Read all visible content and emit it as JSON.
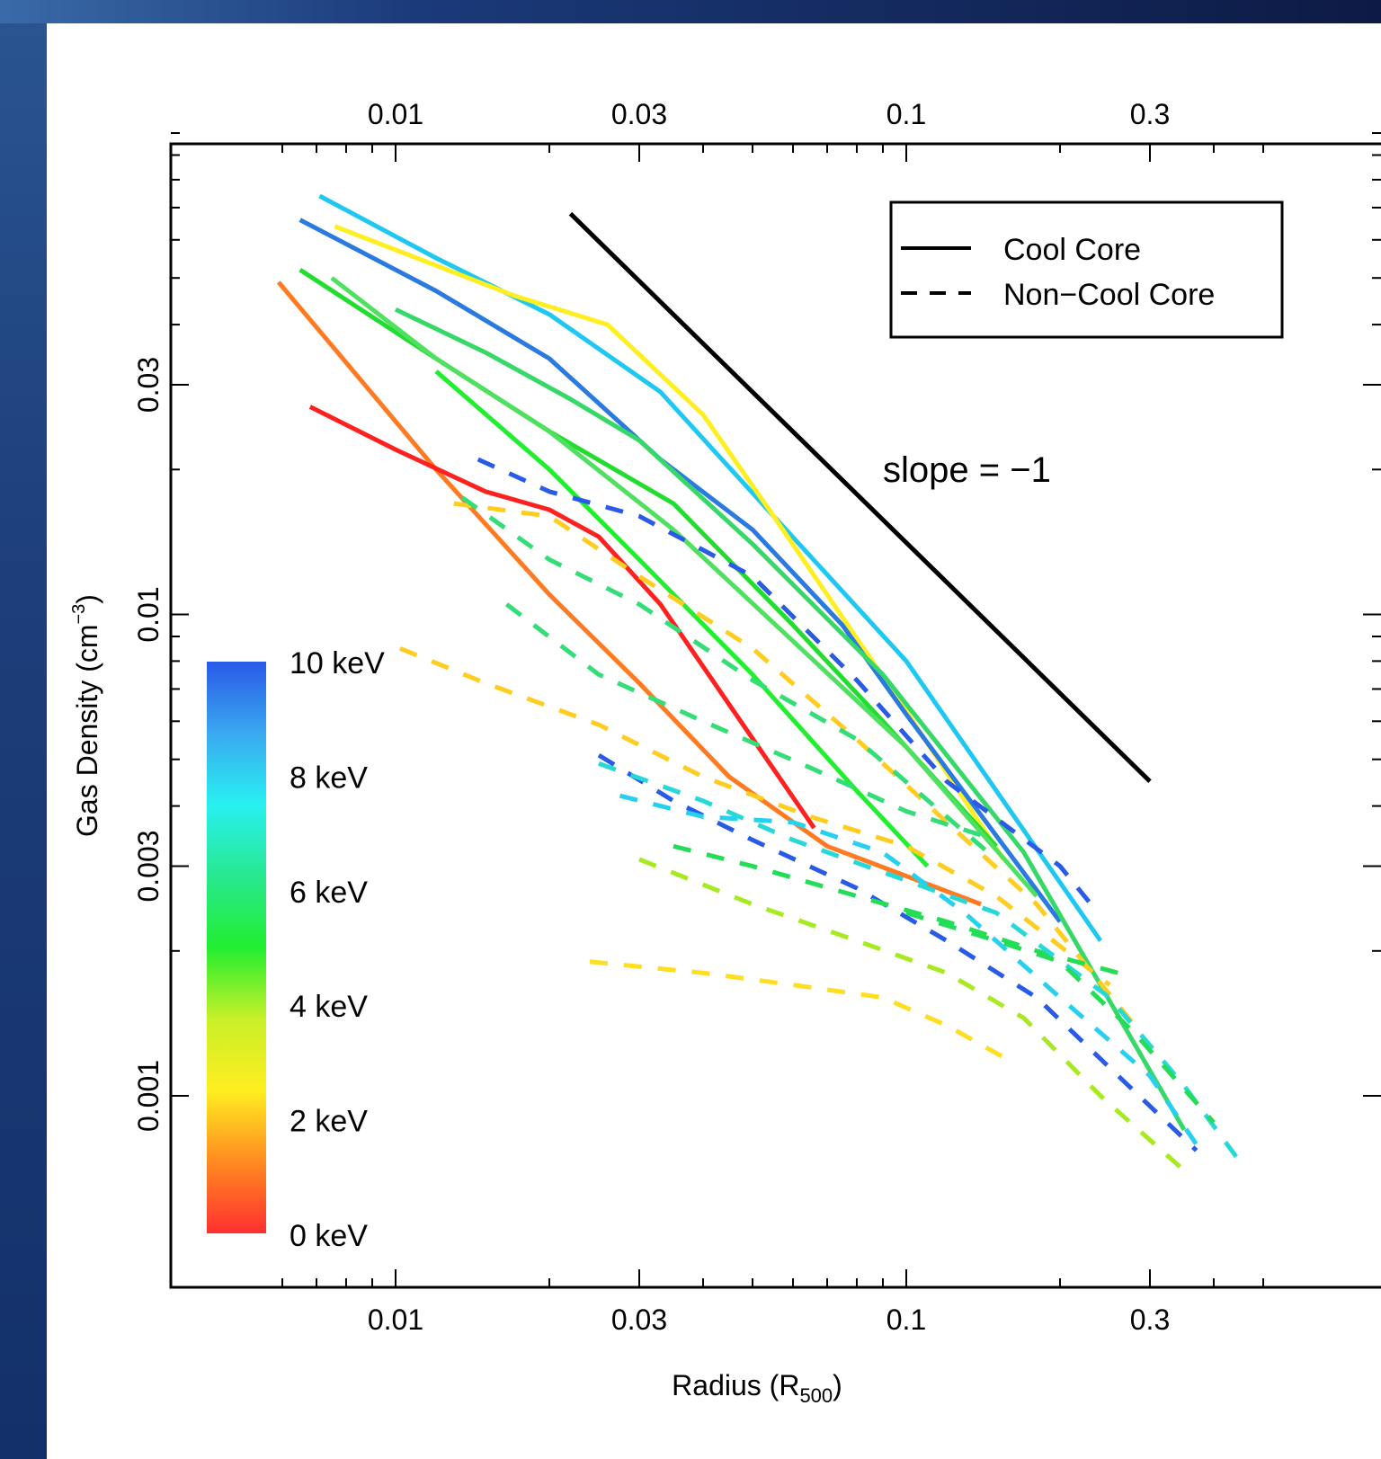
{
  "chart_data": {
    "type": "line",
    "xlabel": "Radius (R500)",
    "xlabel_parts": {
      "base": "Radius (R",
      "sub": "500",
      "close": ")"
    },
    "ylabel": "Gas Density (cm^-3)",
    "ylabel_parts": {
      "base": "Gas Density (cm",
      "sup": "−3",
      "close": ")"
    },
    "x_scale": "log",
    "y_scale": "log",
    "xlim": [
      0.0055,
      0.55
    ],
    "ylim": [
      0.00066,
      0.11
    ],
    "x_ticks": [
      0.01,
      0.03,
      0.1,
      0.3
    ],
    "x_tick_labels": [
      "0.01",
      "0.03",
      "0.1",
      "0.3"
    ],
    "y_ticks": [
      0.001,
      0.003,
      0.01,
      0.03
    ],
    "y_tick_labels": [
      "0.001",
      "0.003",
      "0.01",
      "0.03"
    ],
    "grid": false,
    "legend": {
      "position": "top-right",
      "entries": [
        {
          "label": "Cool Core",
          "style": "solid"
        },
        {
          "label": "Non−Cool Core",
          "style": "dashed"
        }
      ]
    },
    "annotation": {
      "text": "slope = −1",
      "x": 0.1,
      "y": 0.021
    },
    "colorbar": {
      "labels": [
        "10 keV",
        "8 keV",
        "6 keV",
        "4 keV",
        "2 keV",
        "0 keV"
      ],
      "stops": [
        "#ff3030",
        "#ff8a20",
        "#ffee20",
        "#c8f028",
        "#22ee30",
        "#28e890",
        "#28f0f0",
        "#3aa8f0",
        "#2a5ae8"
      ]
    },
    "reference_line": {
      "x": [
        0.022,
        0.3
      ],
      "y": [
        0.068,
        0.0045
      ],
      "color": "#000000",
      "style": "solid"
    },
    "series": [
      {
        "style": "solid",
        "color": "#1ec8f0",
        "x": [
          0.0071,
          0.012,
          0.02,
          0.033,
          0.055,
          0.1,
          0.24
        ],
        "y": [
          0.074,
          0.055,
          0.042,
          0.029,
          0.016,
          0.008,
          0.0021
        ]
      },
      {
        "style": "solid",
        "color": "#ffee20",
        "x": [
          0.0076,
          0.011,
          0.017,
          0.026,
          0.04,
          0.055,
          0.1,
          0.155
        ],
        "y": [
          0.064,
          0.055,
          0.046,
          0.04,
          0.026,
          0.016,
          0.0063,
          0.0031
        ]
      },
      {
        "style": "solid",
        "color": "#2a7ae0",
        "x": [
          0.0065,
          0.012,
          0.02,
          0.033,
          0.05,
          0.075,
          0.1,
          0.2
        ],
        "y": [
          0.066,
          0.047,
          0.034,
          0.021,
          0.015,
          0.0095,
          0.0062,
          0.0023
        ]
      },
      {
        "style": "solid",
        "color": "#22dd30",
        "x": [
          0.0065,
          0.012,
          0.02,
          0.035,
          0.06,
          0.09,
          0.15
        ],
        "y": [
          0.052,
          0.034,
          0.024,
          0.017,
          0.0095,
          0.006,
          0.0033
        ]
      },
      {
        "style": "solid",
        "color": "#50e060",
        "x": [
          0.0075,
          0.012,
          0.02,
          0.035,
          0.06,
          0.1,
          0.18
        ],
        "y": [
          0.05,
          0.034,
          0.024,
          0.015,
          0.0088,
          0.0053,
          0.0026
        ]
      },
      {
        "style": "solid",
        "color": "#36d868",
        "x": [
          0.01,
          0.015,
          0.022,
          0.03,
          0.05,
          0.09,
          0.17,
          0.35
        ],
        "y": [
          0.043,
          0.035,
          0.028,
          0.023,
          0.014,
          0.0075,
          0.0032,
          0.00085
        ]
      },
      {
        "style": "solid",
        "color": "#22ee30",
        "x": [
          0.012,
          0.02,
          0.03,
          0.05,
          0.08,
          0.11
        ],
        "y": [
          0.032,
          0.02,
          0.013,
          0.0075,
          0.0043,
          0.003
        ]
      },
      {
        "style": "solid",
        "color": "#ff7a20",
        "x": [
          0.0059,
          0.012,
          0.02,
          0.03,
          0.045,
          0.07,
          0.14
        ],
        "y": [
          0.049,
          0.02,
          0.011,
          0.0072,
          0.0046,
          0.0033,
          0.0025
        ]
      },
      {
        "style": "solid",
        "color": "#ff2020",
        "x": [
          0.0068,
          0.01,
          0.015,
          0.02,
          0.025,
          0.033,
          0.045,
          0.066
        ],
        "y": [
          0.027,
          0.022,
          0.018,
          0.0165,
          0.0145,
          0.0105,
          0.0065,
          0.0036
        ]
      },
      {
        "style": "dashed",
        "color": "#2a5ae8",
        "x": [
          0.0145,
          0.02,
          0.03,
          0.05,
          0.08,
          0.12,
          0.2,
          0.23
        ],
        "y": [
          0.021,
          0.018,
          0.016,
          0.012,
          0.0073,
          0.0045,
          0.003,
          0.0025
        ]
      },
      {
        "style": "dashed",
        "color": "#ffcc20",
        "x": [
          0.013,
          0.02,
          0.03,
          0.05,
          0.08,
          0.12,
          0.18,
          0.28
        ],
        "y": [
          0.017,
          0.016,
          0.012,
          0.0085,
          0.0055,
          0.0037,
          0.0025,
          0.0014
        ]
      },
      {
        "style": "dashed",
        "color": "#33dd77",
        "x": [
          0.0135,
          0.02,
          0.03,
          0.05,
          0.08,
          0.15
        ],
        "y": [
          0.0175,
          0.013,
          0.0105,
          0.0073,
          0.0055,
          0.0031
        ]
      },
      {
        "style": "dashed",
        "color": "#33dd77",
        "x": [
          0.0165,
          0.025,
          0.04,
          0.065,
          0.1,
          0.15
        ],
        "y": [
          0.0105,
          0.0075,
          0.006,
          0.0048,
          0.0039,
          0.0034
        ]
      },
      {
        "style": "dashed",
        "color": "#ffcc20",
        "x": [
          0.0102,
          0.015,
          0.025,
          0.04,
          0.065,
          0.1,
          0.15,
          0.25
        ],
        "y": [
          0.0085,
          0.0072,
          0.0059,
          0.0046,
          0.0038,
          0.0033,
          0.0026,
          0.0017
        ]
      },
      {
        "style": "dashed",
        "color": "#2a5ae8",
        "x": [
          0.025,
          0.035,
          0.05,
          0.08,
          0.12,
          0.18,
          0.26,
          0.37
        ],
        "y": [
          0.0051,
          0.0041,
          0.0034,
          0.0027,
          0.0021,
          0.0016,
          0.0011,
          0.00077
        ]
      },
      {
        "style": "dashed",
        "color": "#28d0f0",
        "x": [
          0.0275,
          0.04,
          0.06,
          0.09,
          0.13,
          0.2,
          0.3,
          0.38
        ],
        "y": [
          0.0042,
          0.0038,
          0.0037,
          0.0032,
          0.0024,
          0.0016,
          0.0011,
          0.00076
        ]
      },
      {
        "style": "dashed",
        "color": "#22dd55",
        "x": [
          0.035,
          0.05,
          0.08,
          0.12,
          0.18,
          0.26
        ],
        "y": [
          0.0033,
          0.003,
          0.0026,
          0.0023,
          0.002,
          0.0018
        ]
      },
      {
        "style": "dashed",
        "color": "#28d8d8",
        "x": [
          0.025,
          0.04,
          0.06,
          0.1,
          0.15,
          0.25,
          0.35,
          0.45
        ],
        "y": [
          0.0049,
          0.0041,
          0.0034,
          0.0028,
          0.0024,
          0.0016,
          0.00105,
          0.00073
        ]
      },
      {
        "style": "dashed",
        "color": "#22dd55",
        "x": [
          0.1,
          0.15,
          0.2,
          0.28,
          0.4
        ],
        "y": [
          0.0024,
          0.0021,
          0.0019,
          0.00135,
          0.00088
        ]
      },
      {
        "style": "dashed",
        "color": "#a8ea22",
        "x": [
          0.03,
          0.05,
          0.08,
          0.12,
          0.17,
          0.24,
          0.35
        ],
        "y": [
          0.0031,
          0.0025,
          0.0021,
          0.0018,
          0.00145,
          0.001,
          0.0007
        ]
      },
      {
        "style": "dashed",
        "color": "#ffdd20",
        "x": [
          0.024,
          0.04,
          0.06,
          0.09,
          0.12,
          0.16
        ],
        "y": [
          0.0019,
          0.0018,
          0.0017,
          0.0016,
          0.0014,
          0.00118
        ]
      }
    ]
  }
}
